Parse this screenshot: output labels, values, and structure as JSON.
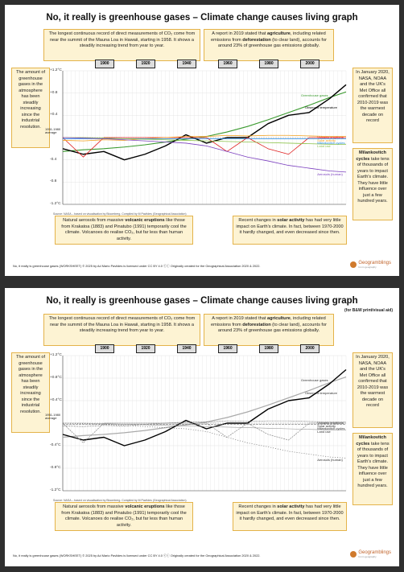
{
  "doc": {
    "title": "No, it really is greenhouse gases – Climate change causes living graph",
    "subtitle_bw": "(for B&W print/visual aid)",
    "boxes": {
      "mauna_loa": "The longest continuous record of direct measurements of CO₂ come from near the summit of the Mauna Loa in Hawaii, starting in 1958. It shows a steadily increasing trend from year to year.",
      "agriculture_pre": "A report in 2019 stated that ",
      "agriculture_bold": "agriculture",
      "agriculture_mid": ", including related emissions from ",
      "deforestation_bold": "deforestation",
      "agriculture_post": " (to clear land), accounts for around 23% of greenhouse gas emissions globally.",
      "amount_ghg": "The amount of greenhouse gases in the atmosphere has been steadily increasing since the industrial resolution.",
      "warmest": "In January 2020, NASA, NOAA and the UK's Met Office all confirmed that 2010-2019 was the warmest decade on record",
      "milank_bold": "Milankovitch cycles",
      "milank_post": " take tens of thousands of years to impact Earth's climate. They have little influence over just a few hundred years.",
      "volcanic_pre": "Natural aerosols from massive ",
      "volcanic_bold": "volcanic eruptions",
      "volcanic_post": " like those from Krakatoa (1883) and Pinatubo (1991) temporarily cool the climate. Volcanoes do realise CO₂, but far less than human activity.",
      "solar_pre": "Recent changes in ",
      "solar_bold": "solar activity",
      "solar_post": " has had very little impact on Earth's climate. In fact, between 1970-2000 it hardly changed, and even decreased since then."
    },
    "year_tags": [
      "1900",
      "1920",
      "1940",
      "1960",
      "1980",
      "2000"
    ],
    "y_labels_p1": [
      "+1.2°C",
      "+0.8",
      "+0.4",
      "-0.4",
      "-0.8",
      "-1.2°C"
    ],
    "y_labels_p2": [
      "+1.2°C",
      "+0.8°C",
      "+0.4°C",
      "-0.4°C",
      "-0.8°C",
      "-1.2°C"
    ],
    "baseline_label": "1951-1980 average",
    "series_labels": {
      "ghg": "Greenhouse gases",
      "observed": "Observed temperature",
      "volcanic": "Volcanic eruptions",
      "solar": "Solar activity",
      "milank": "Milankovitch cycles",
      "land": "Land use",
      "aerosols": "Aerosols (human)"
    },
    "source": "Source: NASA – based on visualisation by Bloomberg. Compiled by M Pavlides (Geographical Association)",
    "footer": "No, it really is greenhouse gases (WORKSHEET) © 2025 by Ad Mario Pavlides is licensed under CC BY 4.0 ⓒⓘ Originally created for the Geographical Association 2020 & 2022.",
    "logo_name": "Geogramblings",
    "logo_tag": "fun in geography",
    "colors": {
      "box_bg": "#fdf3d3",
      "box_border": "#e4b34a",
      "ghg": "#3a9a2e",
      "observed": "#000000",
      "volcanic": "#e02020",
      "solar": "#f0a020",
      "milank": "#1e88e5",
      "land": "#8bc34a",
      "aerosols": "#7b3fbf"
    }
  },
  "chart_data": [
    {
      "type": "line",
      "x": [
        1880,
        1890,
        1900,
        1910,
        1920,
        1930,
        1940,
        1950,
        1960,
        1970,
        1980,
        1990,
        2000,
        2010,
        2018
      ],
      "series": [
        {
          "name": "Greenhouse gases",
          "values": [
            -0.25,
            -0.22,
            -0.2,
            -0.17,
            -0.13,
            -0.08,
            -0.03,
            0.02,
            0.1,
            0.2,
            0.32,
            0.45,
            0.58,
            0.72,
            0.82
          ]
        },
        {
          "name": "Observed temperature",
          "values": [
            -0.2,
            -0.3,
            -0.25,
            -0.4,
            -0.3,
            -0.15,
            0.05,
            -0.1,
            0.0,
            0.0,
            0.25,
            0.4,
            0.45,
            0.7,
            0.95
          ]
        },
        {
          "name": "Volcanic eruptions",
          "values": [
            0,
            -0.35,
            0,
            0,
            0,
            0,
            0,
            0,
            -0.25,
            0,
            -0.2,
            -0.3,
            0,
            0,
            0
          ]
        },
        {
          "name": "Solar activity",
          "values": [
            -0.05,
            -0.06,
            -0.04,
            -0.05,
            -0.02,
            0.0,
            0.02,
            0.02,
            0.04,
            0.03,
            0.04,
            0.04,
            0.03,
            0.02,
            0.02
          ]
        },
        {
          "name": "Milankovitch cycles",
          "values": [
            -0.02,
            -0.02,
            -0.02,
            -0.02,
            -0.02,
            -0.02,
            -0.02,
            -0.02,
            -0.02,
            -0.02,
            -0.02,
            -0.02,
            -0.02,
            -0.02,
            -0.02
          ]
        },
        {
          "name": "Land use",
          "values": [
            0,
            0,
            -0.01,
            -0.02,
            -0.03,
            -0.04,
            -0.05,
            -0.06,
            -0.07,
            -0.08,
            -0.09,
            -0.1,
            -0.11,
            -0.12,
            -0.12
          ]
        },
        {
          "name": "Aerosols (human)",
          "values": [
            0,
            -0.01,
            -0.02,
            -0.04,
            -0.06,
            -0.08,
            -0.1,
            -0.15,
            -0.25,
            -0.35,
            -0.42,
            -0.5,
            -0.55,
            -0.6,
            -0.62
          ]
        }
      ],
      "xlim": [
        1880,
        2018
      ],
      "ylim": [
        -1.2,
        1.2
      ],
      "grid": true
    }
  ]
}
